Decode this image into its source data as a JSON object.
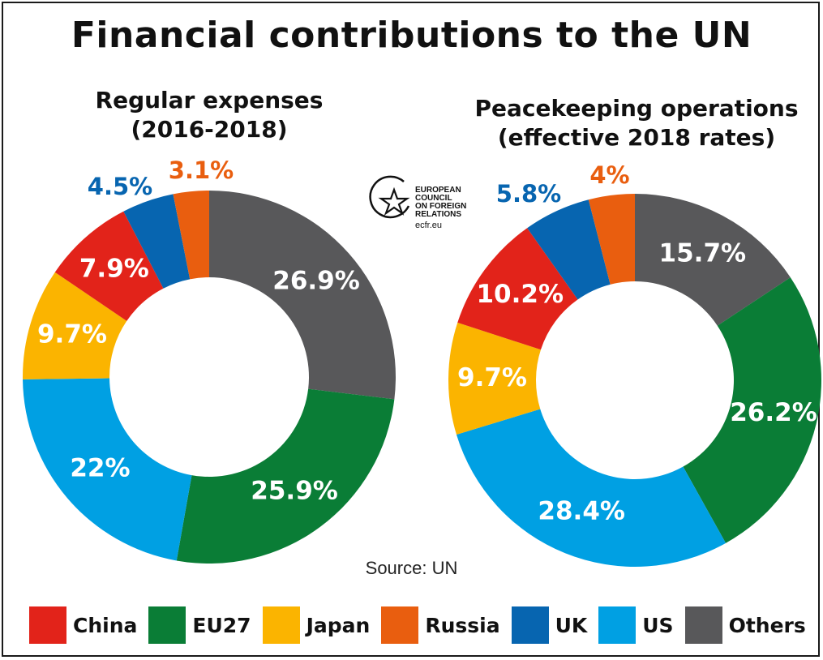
{
  "title": "Financial contributions to the UN",
  "source": "Source: UN",
  "logo": {
    "lines": [
      "EUROPEAN",
      "COUNCIL",
      "ON FOREIGN",
      "RELATIONS"
    ],
    "url": "ecfr.eu"
  },
  "legend": [
    {
      "label": "China",
      "color": "#e2231a"
    },
    {
      "label": "EU27",
      "color": "#0a7d36"
    },
    {
      "label": "Japan",
      "color": "#fbb400"
    },
    {
      "label": "Russia",
      "color": "#e95e0f"
    },
    {
      "label": "UK",
      "color": "#0765b0"
    },
    {
      "label": "US",
      "color": "#00a0e3"
    },
    {
      "label": "Others",
      "color": "#58585a"
    }
  ],
  "chart_data": [
    {
      "type": "pie",
      "title_lines": [
        "Regular expenses",
        "(2016-2018)"
      ],
      "slices": [
        {
          "label": "Others",
          "value": 26.9,
          "text": "26.9%",
          "color": "#58585a"
        },
        {
          "label": "EU27",
          "value": 25.9,
          "text": "25.9%",
          "color": "#0a7d36"
        },
        {
          "label": "US",
          "value": 22,
          "text": "22%",
          "color": "#00a0e3"
        },
        {
          "label": "Japan",
          "value": 9.7,
          "text": "9.7%",
          "color": "#fbb400"
        },
        {
          "label": "China",
          "value": 7.9,
          "text": "7.9%",
          "color": "#e2231a"
        },
        {
          "label": "UK",
          "value": 4.5,
          "text": "4.5%",
          "color": "#0765b0"
        },
        {
          "label": "Russia",
          "value": 3.1,
          "text": "3.1%",
          "color": "#e95e0f"
        }
      ]
    },
    {
      "type": "pie",
      "title_lines": [
        "Peacekeeping operations",
        "(effective 2018 rates)"
      ],
      "slices": [
        {
          "label": "Others",
          "value": 15.7,
          "text": "15.7%",
          "color": "#58585a"
        },
        {
          "label": "EU27",
          "value": 26.2,
          "text": "26.2%",
          "color": "#0a7d36"
        },
        {
          "label": "US",
          "value": 28.4,
          "text": "28.4%",
          "color": "#00a0e3"
        },
        {
          "label": "Japan",
          "value": 9.7,
          "text": "9.7%",
          "color": "#fbb400"
        },
        {
          "label": "China",
          "value": 10.2,
          "text": "10.2%",
          "color": "#e2231a"
        },
        {
          "label": "UK",
          "value": 5.8,
          "text": "5.8%",
          "color": "#0765b0"
        },
        {
          "label": "Russia",
          "value": 4,
          "text": "4%",
          "color": "#e95e0f"
        }
      ]
    }
  ]
}
